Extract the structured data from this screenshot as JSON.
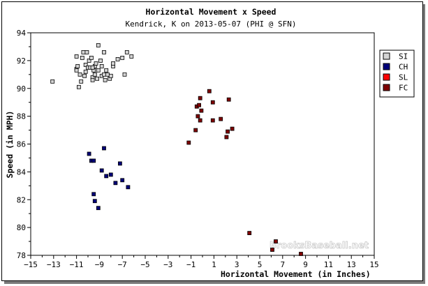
{
  "chart_data": {
    "type": "scatter",
    "title": "Horizontal Movement x Speed",
    "subtitle": "Kendrick, K on 2013-05-07 (PHI @ SFN)",
    "xlabel": "Horizontal Movement (in Inches)",
    "ylabel": "Speed (in MPH)",
    "xlim": [
      -15,
      15
    ],
    "ylim": [
      78,
      94
    ],
    "xticks": [
      -15,
      -13,
      -11,
      -9,
      -7,
      -5,
      -3,
      -1,
      1,
      3,
      5,
      7,
      9,
      11,
      13,
      15
    ],
    "yticks": [
      78,
      80,
      82,
      84,
      86,
      88,
      90,
      92,
      94
    ],
    "grid": false,
    "legend_position": "right",
    "watermark": "BrooksBaseball.net",
    "series": [
      {
        "name": "SI",
        "color": "#d4d4d4",
        "points": [
          [
            -13.1,
            90.5
          ],
          [
            -11.0,
            92.3
          ],
          [
            -11.0,
            91.4
          ],
          [
            -10.9,
            91.6
          ],
          [
            -10.8,
            90.1
          ],
          [
            -10.6,
            90.5
          ],
          [
            -10.5,
            92.2
          ],
          [
            -10.4,
            92.6
          ],
          [
            -10.3,
            90.9
          ],
          [
            -10.2,
            91.7
          ],
          [
            -10.2,
            91.2
          ],
          [
            -10.1,
            92.6
          ],
          [
            -10.0,
            91.5
          ],
          [
            -9.9,
            92.0
          ],
          [
            -9.8,
            91.5
          ],
          [
            -9.7,
            92.2
          ],
          [
            -9.6,
            90.8
          ],
          [
            -9.6,
            90.6
          ],
          [
            -9.5,
            91.3
          ],
          [
            -9.4,
            91.6
          ],
          [
            -9.4,
            91.0
          ],
          [
            -9.3,
            91.8
          ],
          [
            -9.2,
            90.7
          ],
          [
            -9.1,
            91.3
          ],
          [
            -9.1,
            93.1
          ],
          [
            -8.9,
            92.0
          ],
          [
            -8.8,
            91.6
          ],
          [
            -8.8,
            90.9
          ],
          [
            -8.6,
            92.6
          ],
          [
            -8.6,
            91.0
          ],
          [
            -8.5,
            90.6
          ],
          [
            -8.4,
            91.3
          ],
          [
            -8.3,
            91.0
          ],
          [
            -8.1,
            90.7
          ],
          [
            -8.0,
            90.9
          ],
          [
            -7.8,
            91.6
          ],
          [
            -7.8,
            91.8
          ],
          [
            -7.4,
            92.1
          ],
          [
            -7.0,
            92.2
          ],
          [
            -6.8,
            91.0
          ],
          [
            -6.6,
            92.6
          ],
          [
            -6.2,
            92.3
          ],
          [
            -11.0,
            91.3
          ],
          [
            -10.7,
            91.0
          ],
          [
            -9.6,
            91.5
          ]
        ]
      },
      {
        "name": "CH",
        "color": "#00007a",
        "points": [
          [
            -9.9,
            85.3
          ],
          [
            -9.7,
            84.8
          ],
          [
            -9.5,
            84.8
          ],
          [
            -9.5,
            82.4
          ],
          [
            -9.4,
            81.9
          ],
          [
            -9.1,
            81.4
          ],
          [
            -8.8,
            84.1
          ],
          [
            -8.6,
            85.7
          ],
          [
            -8.4,
            83.7
          ],
          [
            -8.0,
            83.8
          ],
          [
            -7.6,
            83.2
          ],
          [
            -7.2,
            84.6
          ],
          [
            -7.0,
            83.4
          ],
          [
            -6.5,
            82.9
          ]
        ]
      },
      {
        "name": "SL",
        "color": "#ff0000",
        "points": []
      },
      {
        "name": "FC",
        "color": "#7f0000",
        "points": [
          [
            -1.2,
            86.1
          ],
          [
            -0.6,
            87.0
          ],
          [
            -0.5,
            88.7
          ],
          [
            -0.4,
            88.0
          ],
          [
            -0.3,
            88.8
          ],
          [
            -0.2,
            89.3
          ],
          [
            -0.2,
            87.7
          ],
          [
            -0.1,
            88.4
          ],
          [
            0.6,
            89.8
          ],
          [
            0.9,
            87.7
          ],
          [
            0.9,
            89.0
          ],
          [
            1.6,
            87.8
          ],
          [
            2.1,
            86.5
          ],
          [
            2.2,
            86.9
          ],
          [
            2.3,
            89.2
          ],
          [
            2.6,
            87.1
          ],
          [
            4.1,
            79.6
          ],
          [
            6.1,
            78.4
          ],
          [
            6.4,
            79.0
          ],
          [
            8.6,
            78.1
          ]
        ]
      }
    ]
  }
}
